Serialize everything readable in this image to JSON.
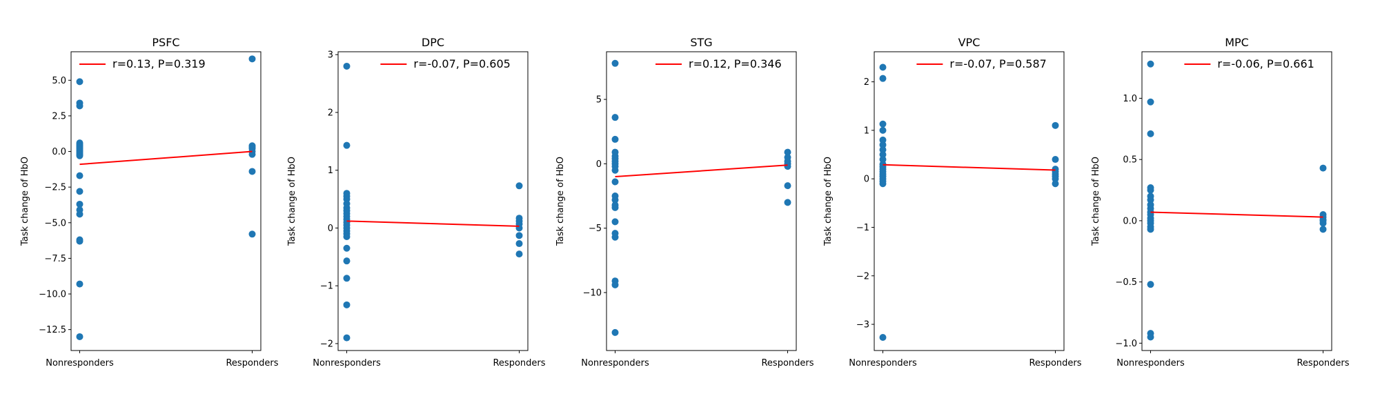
{
  "chart_data": [
    {
      "type": "scatter",
      "title": "PSFC",
      "xlabel": "",
      "ylabel": "Task change of HbO",
      "categories": [
        "Nonresponders",
        "Responders"
      ],
      "xlim": [
        -0.05,
        1.05
      ],
      "ylim": [
        -13.97,
        7.0
      ],
      "yticks": [
        5.0,
        2.5,
        0.0,
        -2.5,
        -5.0,
        -7.5,
        -10.0,
        -12.5
      ],
      "ytick_labels": [
        "5.0",
        "2.5",
        "0.0",
        "−2.5",
        "−5.0",
        "−7.5",
        "−10.0",
        "−12.5"
      ],
      "points": {
        "Nonresponders": [
          4.9,
          3.4,
          3.2,
          0.6,
          0.5,
          0.4,
          0.3,
          0.2,
          0.1,
          0.0,
          -0.1,
          -0.2,
          -0.3,
          -1.7,
          -2.8,
          -3.7,
          -4.1,
          -4.4,
          -6.2,
          -6.3,
          -9.3,
          -13.0
        ],
        "Responders": [
          6.5,
          0.4,
          0.3,
          0.2,
          0.0,
          -0.2,
          -1.4,
          -5.8
        ]
      },
      "fit_line": {
        "y_start": -0.9,
        "y_end": 0.0
      },
      "legend": "r=0.13, P=0.319",
      "legend_position": "upper-left"
    },
    {
      "type": "scatter",
      "title": "DPC",
      "xlabel": "",
      "ylabel": "Task change of HbO",
      "categories": [
        "Nonresponders",
        "Responders"
      ],
      "xlim": [
        -0.05,
        1.05
      ],
      "ylim": [
        -2.12,
        3.05
      ],
      "yticks": [
        3,
        2,
        1,
        0,
        -1,
        -2
      ],
      "ytick_labels": [
        "3",
        "2",
        "1",
        "0",
        "−1",
        "−2"
      ],
      "points": {
        "Nonresponders": [
          2.8,
          1.43,
          0.6,
          0.55,
          0.5,
          0.42,
          0.35,
          0.3,
          0.25,
          0.2,
          0.15,
          0.1,
          0.05,
          0.0,
          -0.05,
          -0.1,
          -0.15,
          -0.35,
          -0.57,
          -0.87,
          -1.33,
          -1.9
        ],
        "Responders": [
          0.73,
          0.17,
          0.12,
          0.07,
          0.0,
          -0.13,
          -0.27,
          -0.45
        ]
      },
      "fit_line": {
        "y_start": 0.12,
        "y_end": 0.03
      },
      "legend": "r=-0.07, P=0.605",
      "legend_position": "upper-right"
    },
    {
      "type": "scatter",
      "title": "STG",
      "xlabel": "",
      "ylabel": "Task change of HbO",
      "categories": [
        "Nonresponders",
        "Responders"
      ],
      "xlim": [
        -0.05,
        1.05
      ],
      "ylim": [
        -14.5,
        8.7
      ],
      "yticks": [
        5,
        0,
        -5,
        -10
      ],
      "ytick_labels": [
        "5",
        "0",
        "−5",
        "−10"
      ],
      "points": {
        "Nonresponders": [
          7.8,
          3.6,
          1.9,
          0.9,
          0.6,
          0.4,
          0.2,
          0.0,
          -0.2,
          -0.5,
          -1.4,
          -2.5,
          -2.8,
          -3.2,
          -3.4,
          -4.5,
          -5.4,
          -5.7,
          -9.1,
          -9.4,
          -13.1
        ],
        "Responders": [
          0.9,
          0.5,
          0.2,
          0.0,
          -0.2,
          -1.7,
          -3.0
        ]
      },
      "fit_line": {
        "y_start": -1.0,
        "y_end": -0.1
      },
      "legend": "r=0.12, P=0.346",
      "legend_position": "upper-right"
    },
    {
      "type": "scatter",
      "title": "VPC",
      "xlabel": "",
      "ylabel": "Task change of HbO",
      "categories": [
        "Nonresponders",
        "Responders"
      ],
      "xlim": [
        -0.05,
        1.05
      ],
      "ylim": [
        -3.54,
        2.62
      ],
      "yticks": [
        2,
        1,
        0,
        -1,
        -2,
        -3
      ],
      "ytick_labels": [
        "2",
        "1",
        "0",
        "−1",
        "−2",
        "−3"
      ],
      "points": {
        "Nonresponders": [
          2.3,
          2.07,
          1.13,
          1.0,
          0.8,
          0.7,
          0.6,
          0.5,
          0.4,
          0.3,
          0.25,
          0.2,
          0.15,
          0.1,
          0.05,
          0.0,
          -0.05,
          -0.1,
          -3.27
        ],
        "Responders": [
          1.1,
          0.4,
          0.2,
          0.15,
          0.1,
          0.05,
          0.0,
          -0.1
        ]
      },
      "fit_line": {
        "y_start": 0.29,
        "y_end": 0.18
      },
      "legend": "r=-0.07, P=0.587",
      "legend_position": "upper-right"
    },
    {
      "type": "scatter",
      "title": "MPC",
      "xlabel": "",
      "ylabel": "Task change of HbO",
      "categories": [
        "Nonresponders",
        "Responders"
      ],
      "xlim": [
        -0.05,
        1.05
      ],
      "ylim": [
        -1.06,
        1.38
      ],
      "yticks": [
        1.0,
        0.5,
        0.0,
        -0.5,
        -1.0
      ],
      "ytick_labels": [
        "1.0",
        "0.5",
        "0.0",
        "−0.5",
        "−1.0"
      ],
      "points": {
        "Nonresponders": [
          1.28,
          0.97,
          0.71,
          0.27,
          0.25,
          0.2,
          0.17,
          0.13,
          0.1,
          0.07,
          0.05,
          0.02,
          0.0,
          -0.02,
          -0.05,
          -0.07,
          -0.52,
          -0.92,
          -0.95
        ],
        "Responders": [
          0.43,
          0.05,
          0.03,
          0.01,
          0.0,
          -0.02,
          -0.07
        ]
      },
      "fit_line": {
        "y_start": 0.07,
        "y_end": 0.03
      },
      "legend": "r=-0.06, P=0.661",
      "legend_position": "upper-right"
    }
  ],
  "colors": {
    "points": "#1f77b4",
    "fit_line": "#ff0000",
    "axes": "#000000"
  }
}
